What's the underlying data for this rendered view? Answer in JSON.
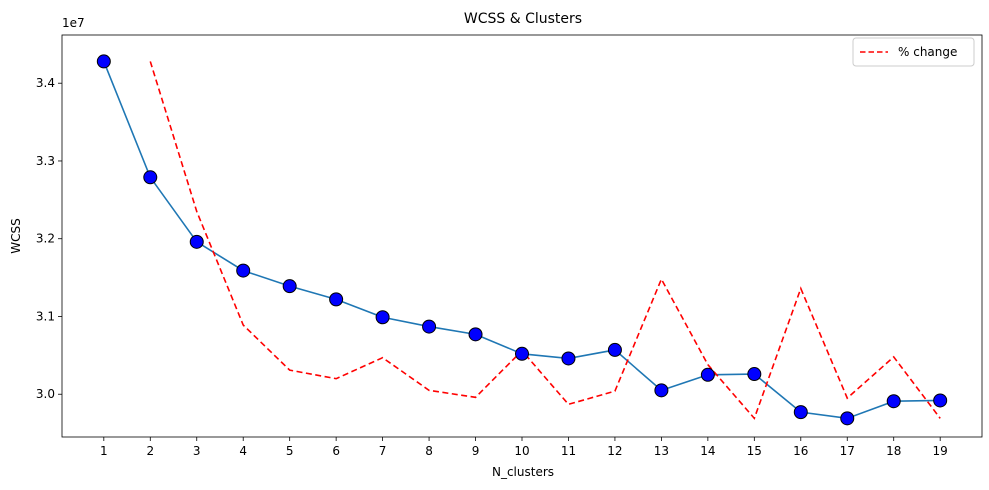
{
  "chart_data": {
    "type": "line",
    "title": "WCSS & Clusters",
    "xlabel": "N_clusters",
    "ylabel": "WCSS",
    "y_offset_label": "1e7",
    "x": [
      1,
      2,
      3,
      4,
      5,
      6,
      7,
      8,
      9,
      10,
      11,
      12,
      13,
      14,
      15,
      16,
      17,
      18,
      19
    ],
    "x_ticks": [
      "1",
      "2",
      "3",
      "4",
      "5",
      "6",
      "7",
      "8",
      "9",
      "10",
      "11",
      "12",
      "13",
      "14",
      "15",
      "16",
      "17",
      "18",
      "19"
    ],
    "y_ticks": [
      "3.0",
      "3.1",
      "3.2",
      "3.3",
      "3.4"
    ],
    "y_tick_values": [
      30000000,
      31000000,
      32000000,
      33000000,
      34000000
    ],
    "ylim": [
      29450000,
      34620000
    ],
    "xlim": [
      0.1,
      19.9
    ],
    "series": [
      {
        "style": "solid-with-markers",
        "color": "#1f77b4",
        "marker_color": "#0000ff",
        "x": [
          1,
          2,
          3,
          4,
          5,
          6,
          7,
          8,
          9,
          10,
          11,
          12,
          13,
          14,
          15,
          16,
          17,
          18,
          19
        ],
        "values": [
          34280000,
          32790000,
          31960000,
          31590000,
          31390000,
          31220000,
          30990000,
          30870000,
          30770000,
          30520000,
          30460000,
          30570000,
          30050000,
          30250000,
          30260000,
          29770000,
          29690000,
          29910000,
          29920000
        ]
      },
      {
        "name": "% change",
        "style": "dashed",
        "color": "#ff0000",
        "x": [
          2,
          3,
          4,
          5,
          6,
          7,
          8,
          9,
          10,
          11,
          12,
          13,
          14,
          15,
          16,
          17,
          18,
          19
        ],
        "values": [
          34280000,
          32350000,
          30890000,
          30310000,
          30200000,
          30470000,
          30050000,
          29960000,
          30560000,
          29870000,
          30040000,
          31480000,
          30380000,
          29690000,
          31360000,
          29950000,
          30480000,
          29690000
        ]
      }
    ],
    "legend": {
      "position": "top-right",
      "entries": [
        "% change"
      ]
    },
    "grid": false
  }
}
